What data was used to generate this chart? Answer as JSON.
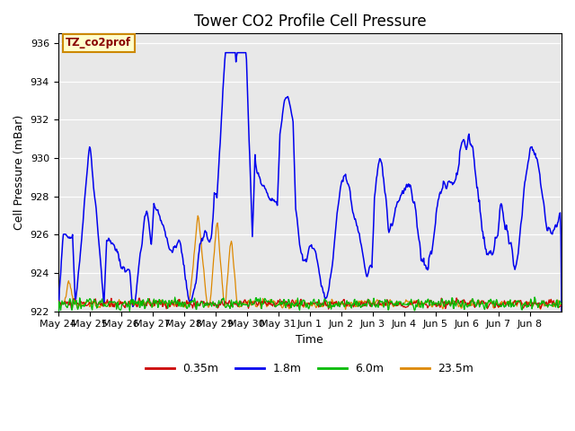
{
  "title": "Tower CO2 Profile Cell Pressure",
  "xlabel": "Time",
  "ylabel": "Cell Pressure (mBar)",
  "ylim": [
    922,
    936.5
  ],
  "yticks": [
    922,
    924,
    926,
    928,
    930,
    932,
    934,
    936
  ],
  "xtick_labels": [
    "May 24",
    "May 25",
    "May 26",
    "May 27",
    "May 28",
    "May 29",
    "May 30",
    "May 31",
    "Jun 1",
    "Jun 2",
    "Jun 3",
    "Jun 4",
    "Jun 5",
    "Jun 6",
    "Jun 7",
    "Jun 8"
  ],
  "legend_labels": [
    "0.35m",
    "1.8m",
    "6.0m",
    "23.5m"
  ],
  "colors": [
    "#cc0000",
    "#0000ee",
    "#00bb00",
    "#dd8800"
  ],
  "annotation_text": "TZ_co2prof",
  "annotation_bg": "#ffffcc",
  "annotation_border": "#cc8800",
  "bg_color": "#e8e8e8",
  "title_fontsize": 12,
  "axis_fontsize": 9,
  "tick_fontsize": 8,
  "legend_fontsize": 9
}
